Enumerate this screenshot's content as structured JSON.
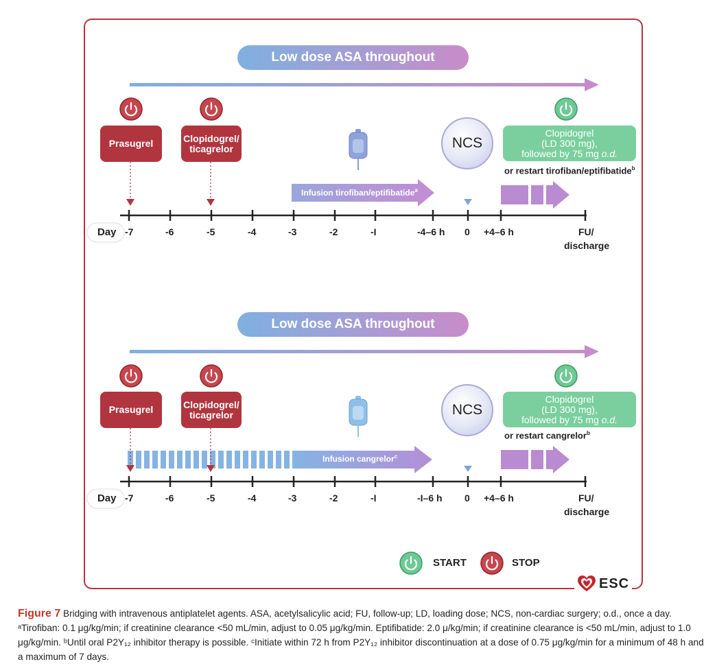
{
  "panel1": {
    "asa": "Low dose ASA throughout",
    "stop1": "Prasugrel",
    "stop2": "Clopidogrel/ ticagrelor",
    "infusion": "Infusion tirofiban/eptifibatide",
    "infusion_sup": "a",
    "ncs": "NCS",
    "start_line1": "Clopidogrel",
    "start_line2": "(LD 300 mg),",
    "start_line3": "followed by 75 mg",
    "start_od": "o.d.",
    "restart": "or restart tirofiban/eptifibatide",
    "restart_sup": "b",
    "day": "Day",
    "ticks": [
      "-7",
      "-6",
      "-5",
      "-4",
      "-3",
      "-2",
      "-I",
      "-4–6 h",
      "0",
      "+4–6 h"
    ],
    "fu1": "FU/",
    "fu2": "discharge"
  },
  "panel2": {
    "asa": "Low dose ASA throughout",
    "stop1": "Prasugrel",
    "stop2": "Clopidogrel/ ticagrelor",
    "infusion": "Infusion cangrelor",
    "infusion_sup": "c",
    "ncs": "NCS",
    "start_line1": "Clopidogrel",
    "start_line2": "(LD 300 mg),",
    "start_line3": "followed by 75 mg",
    "start_od": "o.d.",
    "restart": "or restart cangrelor",
    "restart_sup": "b",
    "day": "Day",
    "ticks": [
      "-7",
      "-6",
      "-5",
      "-4",
      "-3",
      "-2",
      "-I",
      "-I–6 h",
      "0",
      "+4–6 h"
    ],
    "fu1": "FU/",
    "fu2": "discharge"
  },
  "legend": {
    "start": "START",
    "stop": "STOP"
  },
  "logo": "ESC",
  "caption": {
    "figure": "Figure 7",
    "text": " Bridging with intravenous antiplatelet agents. ASA, acetylsalicylic acid; FU, follow-up; LD, loading dose; NCS, non-cardiac surgery; o.d., once a day. ᵃTirofiban: 0.1 μg/kg/min; if creatinine clearance <50 mL/min, adjust to 0.05 μg/kg/min. Eptifibatide: 2.0 μ/kg/min; if creatinine clearance is <50 mL/min, adjust to 1.0 μg/kg/min. ᵇUntil oral P2Y₁₂ inhibitor therapy is possible. ᶜInitiate within 72 h from P2Y₁₂ inhibitor discontinuation at a dose of 0.75 μg/kg/min for a minimum of 48 h and a maximum of 7 days."
  },
  "colors": {
    "red": "#b1353e",
    "green": "#7bcf9e",
    "purple": "#b98bd0",
    "blue": "#85b4e2",
    "border": "#b9333a"
  }
}
